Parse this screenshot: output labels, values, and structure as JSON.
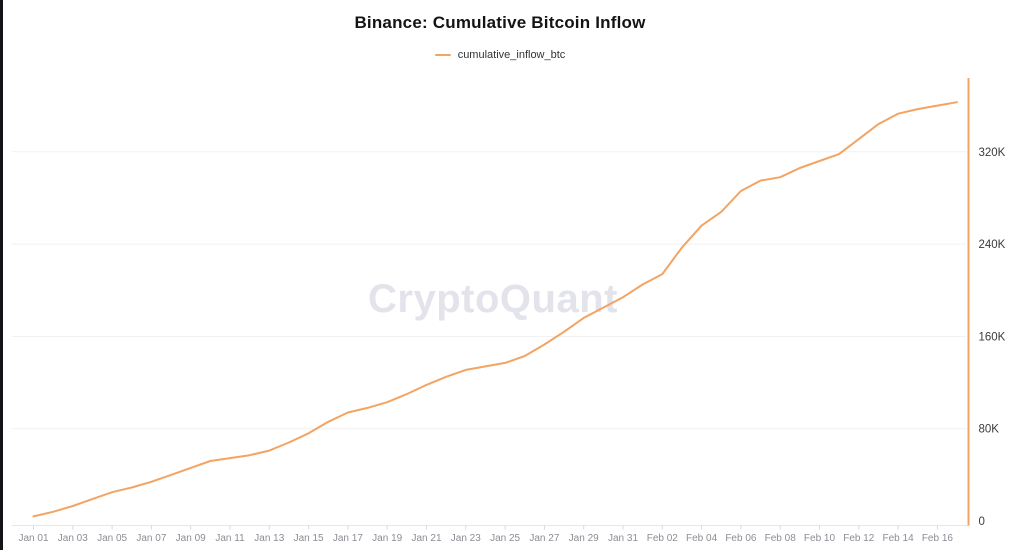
{
  "header": {
    "title": "Binance: Cumulative Bitcoin Inflow"
  },
  "legend": {
    "items": [
      {
        "label": "cumulative_inflow_btc",
        "color": "#F3A463"
      }
    ]
  },
  "watermark": "CryptoQuant",
  "colors": {
    "line": "#F3A463",
    "y_axis_line": "#F3A463",
    "grid": "#f1f1f5",
    "baseline": "#e6e6ec",
    "tick": "#d8d8e0",
    "x_tick_text": "#8c8c96",
    "y_tick_text": "#3a3a40",
    "title_text": "#141414",
    "watermark_text": "#e3e3eb",
    "background": "#ffffff",
    "left_bar": "#141418"
  },
  "chart_data": {
    "type": "line",
    "title": "Binance: Cumulative Bitcoin Inflow",
    "xlabel": "",
    "ylabel": "",
    "grid": true,
    "legend_position": "top",
    "y_axis_side": "right",
    "ylim": [
      0,
      383000
    ],
    "y_ticks": [
      0,
      80000,
      160000,
      240000,
      320000
    ],
    "y_tick_labels": [
      "0",
      "80K",
      "160K",
      "240K",
      "320K"
    ],
    "x_tick_step": 2,
    "x_tick_labels": [
      "Jan 01",
      "Jan 03",
      "Jan 05",
      "Jan 07",
      "Jan 09",
      "Jan 11",
      "Jan 13",
      "Jan 15",
      "Jan 17",
      "Jan 19",
      "Jan 21",
      "Jan 23",
      "Jan 25",
      "Jan 27",
      "Jan 29",
      "Jan 31",
      "Feb 02",
      "Feb 04",
      "Feb 06",
      "Feb 08",
      "Feb 10",
      "Feb 12",
      "Feb 14",
      "Feb 16"
    ],
    "x": [
      "Jan 01",
      "Jan 02",
      "Jan 03",
      "Jan 04",
      "Jan 05",
      "Jan 06",
      "Jan 07",
      "Jan 08",
      "Jan 09",
      "Jan 10",
      "Jan 11",
      "Jan 12",
      "Jan 13",
      "Jan 14",
      "Jan 15",
      "Jan 16",
      "Jan 17",
      "Jan 18",
      "Jan 19",
      "Jan 20",
      "Jan 21",
      "Jan 22",
      "Jan 23",
      "Jan 24",
      "Jan 25",
      "Jan 26",
      "Jan 27",
      "Jan 28",
      "Jan 29",
      "Jan 30",
      "Jan 31",
      "Feb 01",
      "Feb 02",
      "Feb 03",
      "Feb 04",
      "Feb 05",
      "Feb 06",
      "Feb 07",
      "Feb 08",
      "Feb 09",
      "Feb 10",
      "Feb 11",
      "Feb 12",
      "Feb 13",
      "Feb 14",
      "Feb 15",
      "Feb 16",
      "Feb 17"
    ],
    "series": [
      {
        "name": "cumulative_inflow_btc",
        "color": "#F3A463",
        "values": [
          4000,
          8000,
          13000,
          19000,
          25000,
          29000,
          34000,
          40000,
          46000,
          52000,
          54500,
          57000,
          61000,
          68000,
          76000,
          86000,
          94000,
          98000,
          103000,
          110000,
          118000,
          125000,
          131000,
          134000,
          137000,
          143000,
          153000,
          164000,
          176000,
          185000,
          194000,
          205000,
          214000,
          237000,
          256000,
          268000,
          286000,
          295000,
          298000,
          306000,
          312000,
          318000,
          331000,
          344000,
          353000,
          357000,
          360000,
          363000
        ]
      }
    ]
  }
}
